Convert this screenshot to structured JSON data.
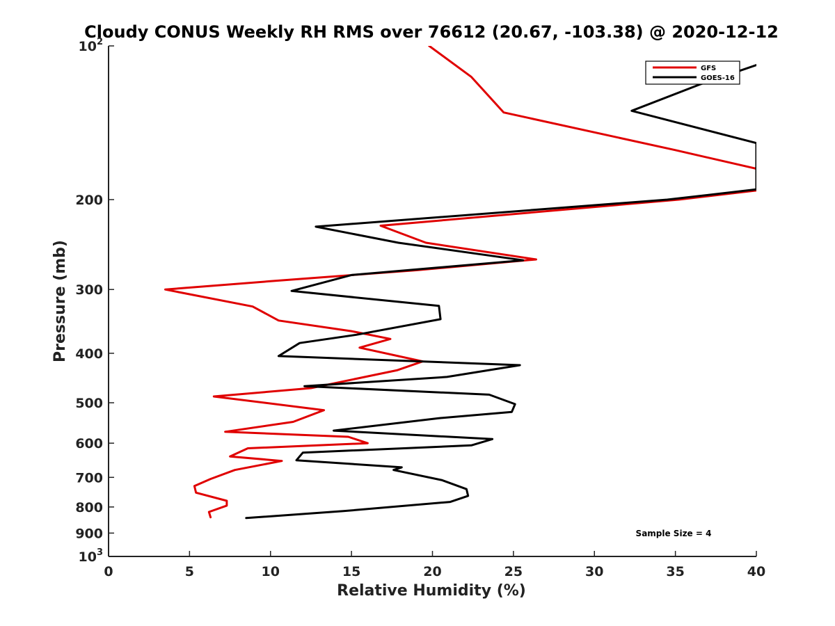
{
  "chart_data": {
    "type": "line",
    "title": "Cloudy CONUS Weekly RH RMS over 76612 (20.67, -103.38) @ 2020-12-12",
    "xlabel": "Relative Humidity (%)",
    "ylabel": "Pressure (mb)",
    "xlim": [
      0,
      40
    ],
    "ylim": [
      100,
      1000
    ],
    "yscale": "log",
    "yreversed": true,
    "xticks": [
      0,
      5,
      10,
      15,
      20,
      25,
      30,
      35,
      40
    ],
    "yticks": [
      {
        "value": 100,
        "base": "10",
        "exp": "2"
      },
      {
        "value": 200,
        "label": "200"
      },
      {
        "value": 300,
        "label": "300"
      },
      {
        "value": 400,
        "label": "400"
      },
      {
        "value": 500,
        "label": "500"
      },
      {
        "value": 600,
        "label": "600"
      },
      {
        "value": 700,
        "label": "700"
      },
      {
        "value": 800,
        "label": "800"
      },
      {
        "value": 900,
        "label": "900"
      },
      {
        "value": 1000,
        "base": "10",
        "exp": "3"
      }
    ],
    "legend_position": "top-right",
    "series": [
      {
        "name": "GFS",
        "color": "#e00000",
        "points": [
          [
            19.8,
            100
          ],
          [
            22.4,
            115
          ],
          [
            24.4,
            135
          ],
          [
            35.0,
            160
          ],
          [
            40.0,
            174
          ],
          [
            40.0,
            192
          ],
          [
            35.2,
            200
          ],
          [
            16.8,
            225
          ],
          [
            19.6,
            243
          ],
          [
            26.4,
            262
          ],
          [
            19.0,
            275
          ],
          [
            10.0,
            289
          ],
          [
            3.5,
            300
          ],
          [
            8.9,
            324
          ],
          [
            10.5,
            345
          ],
          [
            15.0,
            362
          ],
          [
            17.4,
            375
          ],
          [
            15.5,
            390
          ],
          [
            19.4,
            415
          ],
          [
            17.8,
            432
          ],
          [
            12.5,
            468
          ],
          [
            6.5,
            486
          ],
          [
            13.3,
            517
          ],
          [
            11.4,
            545
          ],
          [
            7.2,
            570
          ],
          [
            14.8,
            583
          ],
          [
            16.0,
            600
          ],
          [
            8.6,
            614
          ],
          [
            7.5,
            637
          ],
          [
            10.7,
            650
          ],
          [
            7.8,
            677
          ],
          [
            6.3,
            705
          ],
          [
            5.3,
            728
          ],
          [
            5.4,
            750
          ],
          [
            7.3,
            778
          ],
          [
            7.3,
            795
          ],
          [
            6.2,
            818
          ],
          [
            6.3,
            838
          ]
        ]
      },
      {
        "name": "GOES-16",
        "color": "#000000",
        "points": [
          [
            40.0,
            109
          ],
          [
            36.5,
            119
          ],
          [
            32.3,
            134
          ],
          [
            40.0,
            155
          ],
          [
            40.0,
            191
          ],
          [
            34.5,
            200
          ],
          [
            12.8,
            226
          ],
          [
            17.9,
            243
          ],
          [
            25.6,
            263
          ],
          [
            15.0,
            281
          ],
          [
            11.3,
            302
          ],
          [
            20.4,
            323
          ],
          [
            20.5,
            343
          ],
          [
            15.3,
            368
          ],
          [
            11.8,
            382
          ],
          [
            10.5,
            405
          ],
          [
            25.4,
            422
          ],
          [
            20.9,
            445
          ],
          [
            12.1,
            464
          ],
          [
            23.5,
            482
          ],
          [
            25.1,
            503
          ],
          [
            24.9,
            521
          ],
          [
            20.4,
            536
          ],
          [
            13.9,
            567
          ],
          [
            23.7,
            589
          ],
          [
            22.4,
            606
          ],
          [
            12.0,
            626
          ],
          [
            11.6,
            648
          ],
          [
            18.1,
            669
          ],
          [
            17.6,
            677
          ],
          [
            20.6,
            709
          ],
          [
            22.1,
            738
          ],
          [
            22.2,
            761
          ],
          [
            21.1,
            782
          ],
          [
            14.5,
            815
          ],
          [
            8.5,
            841
          ]
        ]
      }
    ],
    "annotations": [
      {
        "text": "Sample Size = 4",
        "position": "bottom-right"
      }
    ]
  }
}
